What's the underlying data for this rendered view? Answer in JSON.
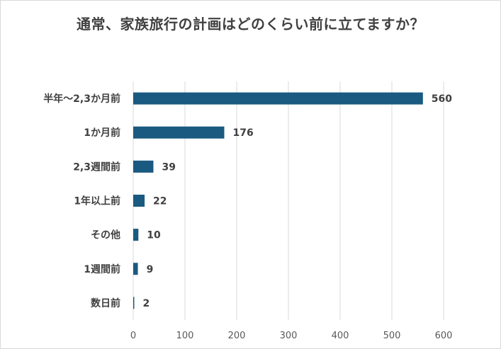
{
  "chart_data": {
    "type": "bar",
    "orientation": "horizontal",
    "title": "通常、家族旅行の計画はどのくらい前に立てますか？",
    "categories": [
      "半年～2,3か月前",
      "1か月前",
      "2,3週間前",
      "1年以上前",
      "その他",
      "1週間前",
      "数日前"
    ],
    "values": [
      560,
      176,
      39,
      22,
      10,
      9,
      2
    ],
    "xlim": [
      0,
      600
    ],
    "xticks": [
      0,
      100,
      200,
      300,
      400,
      500,
      600
    ],
    "grid": true,
    "data_labels": true,
    "bar_color": "#1a5a80",
    "grid_color": "#d9d9d9"
  }
}
